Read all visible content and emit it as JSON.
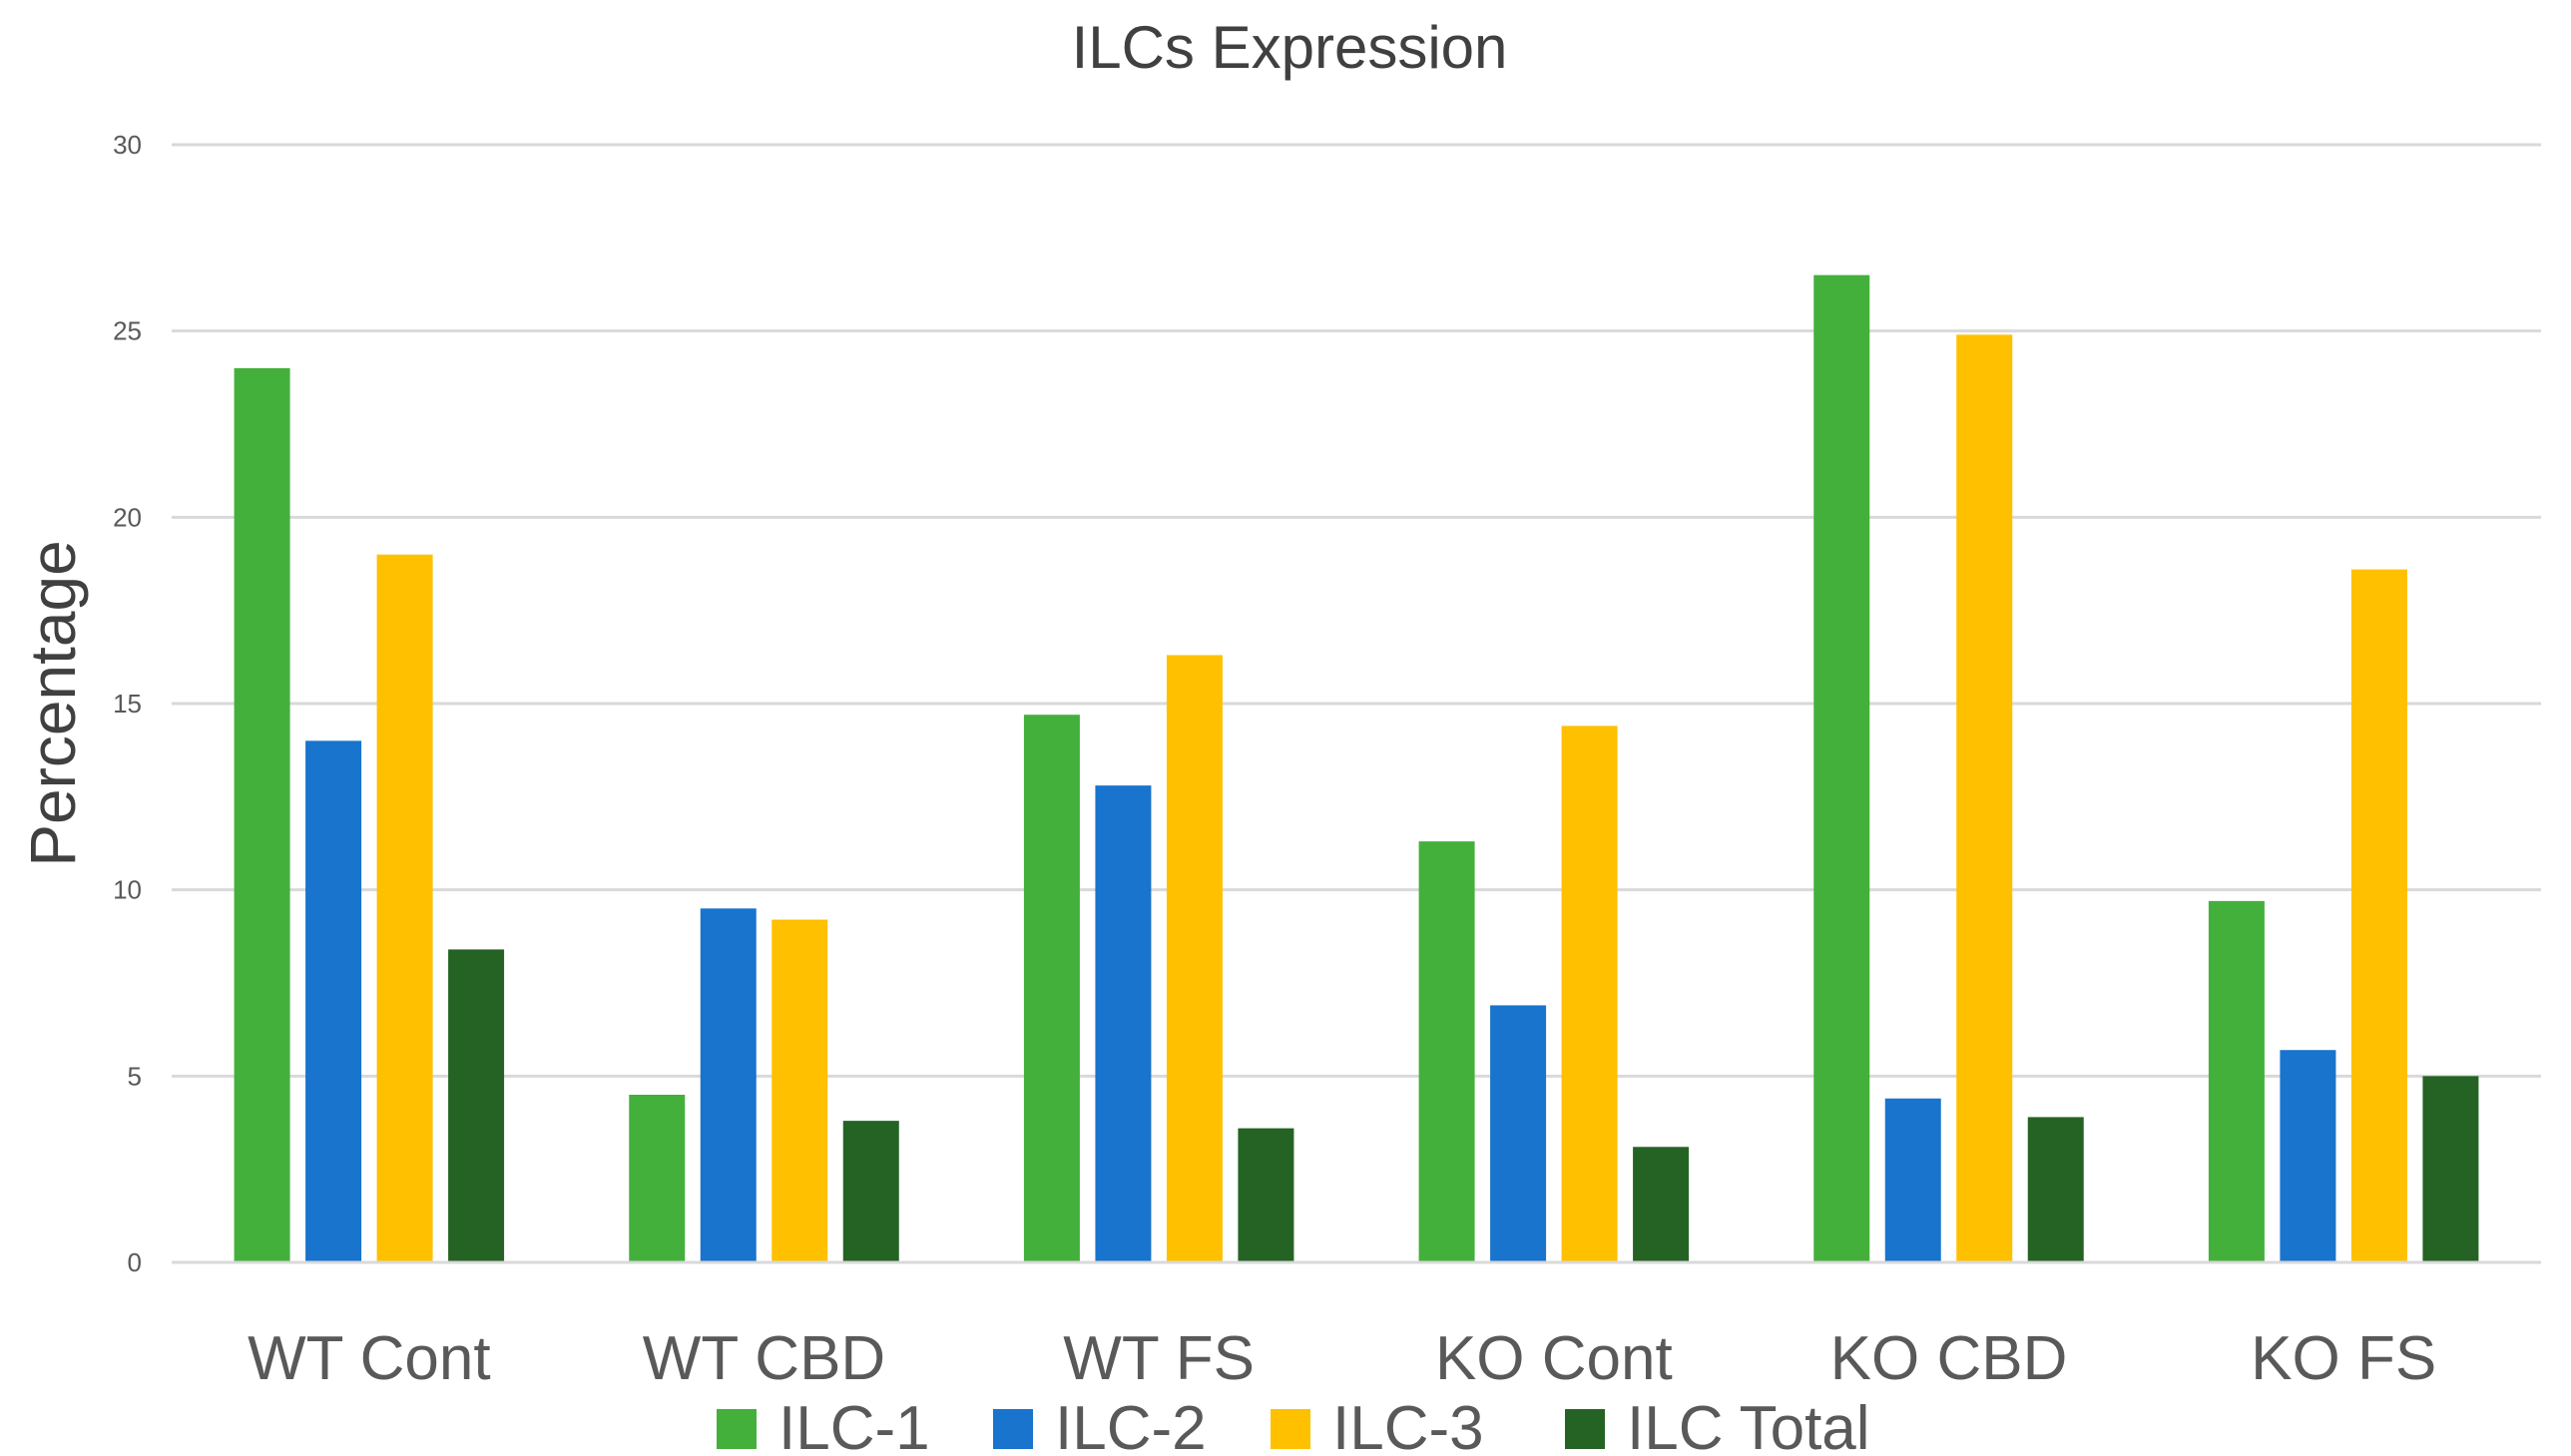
{
  "chart_data": {
    "type": "bar",
    "title": "ILCs Expression",
    "xlabel": "",
    "ylabel": "Percentage",
    "ylim": [
      0,
      30
    ],
    "yticks": [
      0,
      5,
      10,
      15,
      20,
      25,
      30
    ],
    "grid": true,
    "legend_position": "bottom",
    "categories": [
      "WT Cont",
      "WT CBD",
      "WT FS",
      "KO Cont",
      "KO CBD",
      "KO FS"
    ],
    "series": [
      {
        "name": "ILC-1",
        "color": "#44B03C",
        "values": [
          24.0,
          4.5,
          14.7,
          11.3,
          26.5,
          9.7
        ]
      },
      {
        "name": "ILC-2",
        "color": "#1874CD",
        "values": [
          14.0,
          9.5,
          12.8,
          6.9,
          4.4,
          5.7
        ]
      },
      {
        "name": "ILC-3",
        "color": "#FFC000",
        "values": [
          19.0,
          9.2,
          16.3,
          14.4,
          24.9,
          18.6
        ]
      },
      {
        "name": "ILC Total",
        "color": "#246324",
        "values": [
          8.4,
          3.8,
          3.6,
          3.1,
          3.9,
          5.0
        ]
      }
    ]
  },
  "colors": {
    "gridline": "#D9D9D9",
    "axis_text": "#595959",
    "title_text": "#404040"
  }
}
